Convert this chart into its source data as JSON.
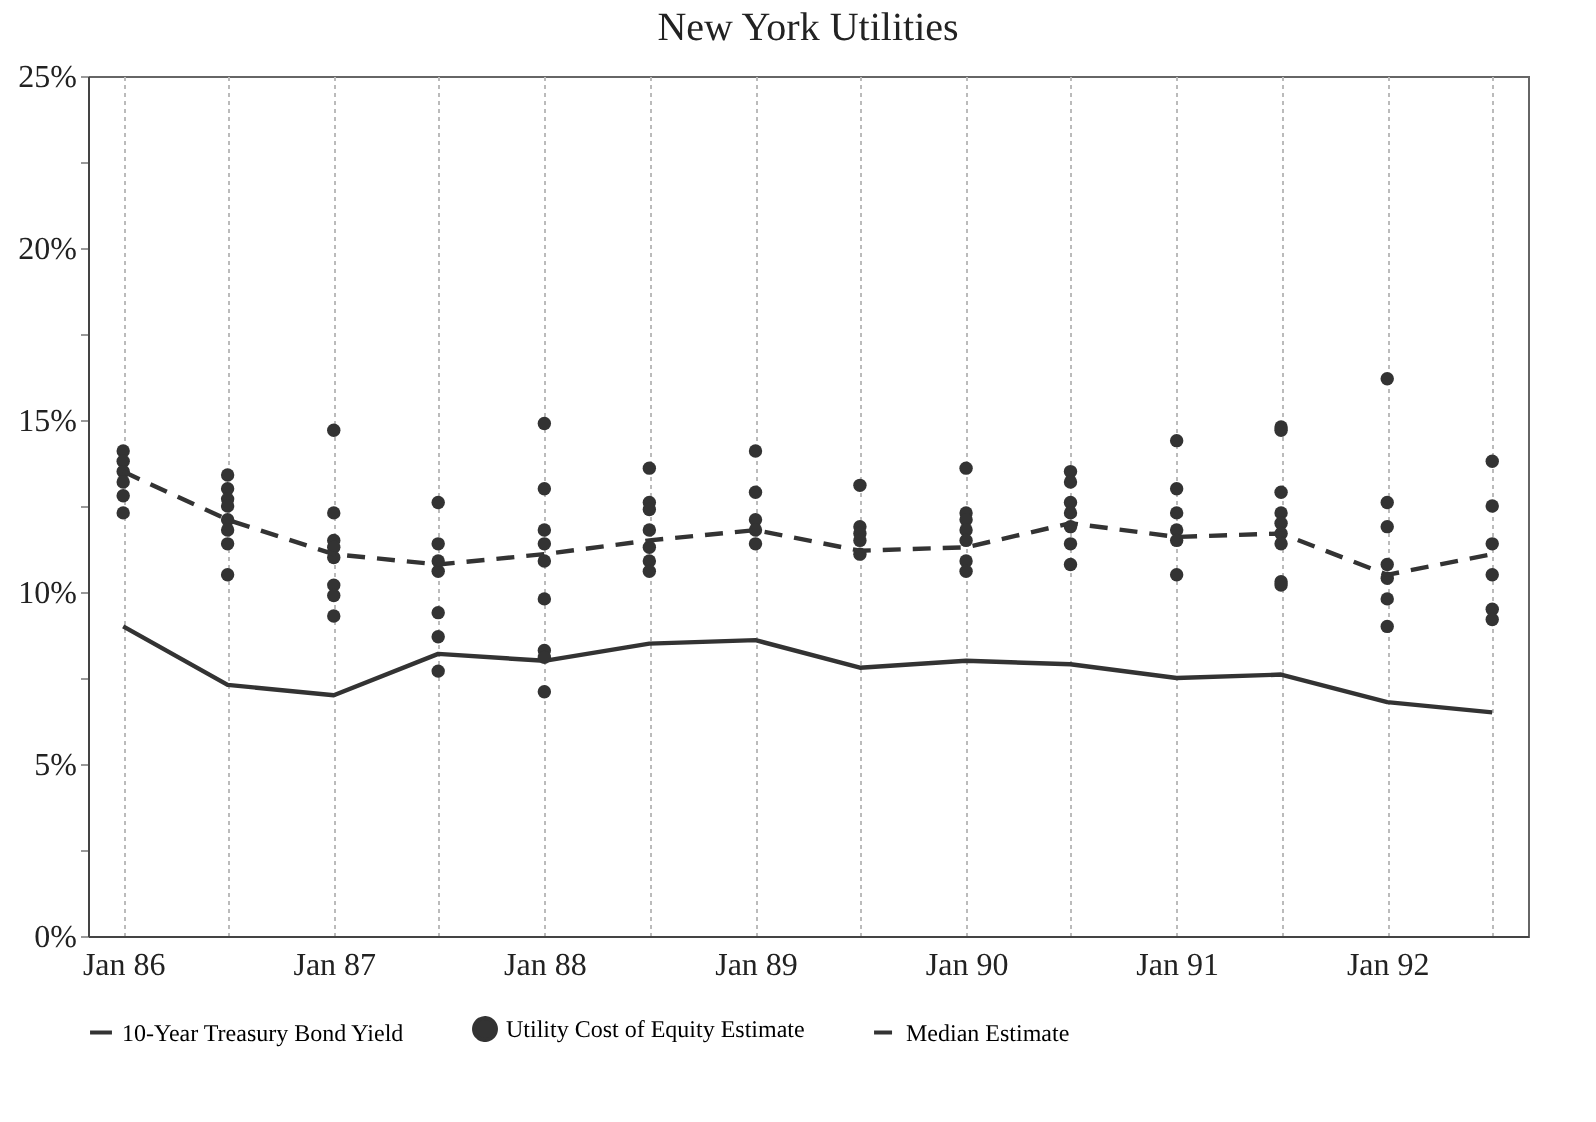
{
  "chart_data": {
    "type": "line",
    "title": "New York Utilities",
    "x": [
      "1986-01",
      "1986-07",
      "1987-01",
      "1987-07",
      "1988-01",
      "1988-07",
      "1989-01",
      "1989-07",
      "1990-01",
      "1990-07",
      "1991-01",
      "1991-07",
      "1992-01",
      "1992-07"
    ],
    "xlim": [
      "1985-11",
      "1992-09"
    ],
    "xticks": [
      {
        "value": "1986-01",
        "label": "Jan 86"
      },
      {
        "value": "1986-07",
        "label": null
      },
      {
        "value": "1987-01",
        "label": "Jan 87"
      },
      {
        "value": "1987-07",
        "label": null
      },
      {
        "value": "1988-01",
        "label": "Jan 88"
      },
      {
        "value": "1988-07",
        "label": null
      },
      {
        "value": "1989-01",
        "label": "Jan 89"
      },
      {
        "value": "1989-07",
        "label": null
      },
      {
        "value": "1990-01",
        "label": "Jan 90"
      },
      {
        "value": "1990-07",
        "label": null
      },
      {
        "value": "1991-01",
        "label": "Jan 91"
      },
      {
        "value": "1991-07",
        "label": null
      },
      {
        "value": "1992-01",
        "label": "Jan 92"
      },
      {
        "value": "1992-07",
        "label": null
      }
    ],
    "ylim": [
      0,
      25
    ],
    "yticks": [
      {
        "value": 0,
        "label": "0%"
      },
      {
        "value": 2.5,
        "label": null
      },
      {
        "value": 5,
        "label": "5%"
      },
      {
        "value": 7.5,
        "label": null
      },
      {
        "value": 10,
        "label": "10%"
      },
      {
        "value": 12.5,
        "label": null
      },
      {
        "value": 15,
        "label": "15%"
      },
      {
        "value": 17.5,
        "label": null
      },
      {
        "value": 20,
        "label": "20%"
      },
      {
        "value": 22.5,
        "label": null
      },
      {
        "value": 25,
        "label": "25%"
      }
    ],
    "grid": "x",
    "legend": "bottom",
    "series": [
      {
        "name": "10-Year Treasury Bond Yield",
        "color": "#333333",
        "line_style": "solid",
        "values": [
          9.0,
          7.3,
          7.0,
          8.2,
          8.0,
          8.5,
          8.6,
          7.8,
          8.0,
          7.9,
          7.5,
          7.6,
          6.8,
          6.5
        ]
      },
      {
        "name": "Utility Cost of Equity Estimate",
        "type": "scatter",
        "color": "#333333",
        "marker": "circle",
        "x": [
          "1986-01",
          "1986-01",
          "1986-01",
          "1986-01",
          "1986-01",
          "1986-01",
          "1986-07",
          "1986-07",
          "1986-07",
          "1986-07",
          "1986-07",
          "1986-07",
          "1986-07",
          "1986-07",
          "1987-01",
          "1987-01",
          "1987-01",
          "1987-01",
          "1987-01",
          "1987-01",
          "1987-01",
          "1987-01",
          "1987-07",
          "1987-07",
          "1987-07",
          "1987-07",
          "1987-07",
          "1987-07",
          "1987-07",
          "1988-01",
          "1988-01",
          "1988-01",
          "1988-01",
          "1988-01",
          "1988-01",
          "1988-01",
          "1988-01",
          "1988-01",
          "1988-07",
          "1988-07",
          "1988-07",
          "1988-07",
          "1988-07",
          "1988-07",
          "1988-07",
          "1989-01",
          "1989-01",
          "1989-01",
          "1989-01",
          "1989-01",
          "1989-07",
          "1989-07",
          "1989-07",
          "1989-07",
          "1989-07",
          "1990-01",
          "1990-01",
          "1990-01",
          "1990-01",
          "1990-01",
          "1990-01",
          "1990-01",
          "1990-07",
          "1990-07",
          "1990-07",
          "1990-07",
          "1990-07",
          "1990-07",
          "1990-07",
          "1991-01",
          "1991-01",
          "1991-01",
          "1991-01",
          "1991-01",
          "1991-01",
          "1991-07",
          "1991-07",
          "1991-07",
          "1991-07",
          "1991-07",
          "1991-07",
          "1991-07",
          "1991-07",
          "1991-07",
          "1992-01",
          "1992-01",
          "1992-01",
          "1992-01",
          "1992-01",
          "1992-01",
          "1992-01",
          "1992-07",
          "1992-07",
          "1992-07",
          "1992-07",
          "1992-07",
          "1992-07"
        ],
        "values": [
          14.1,
          13.8,
          13.5,
          13.2,
          12.8,
          12.3,
          13.4,
          13.0,
          12.7,
          12.5,
          12.1,
          11.8,
          11.4,
          10.5,
          14.7,
          12.3,
          11.5,
          11.3,
          11.0,
          10.2,
          9.9,
          9.3,
          12.6,
          11.4,
          10.9,
          10.6,
          9.4,
          8.7,
          7.7,
          14.9,
          13.0,
          11.8,
          11.4,
          10.9,
          9.8,
          8.3,
          8.1,
          7.1,
          13.6,
          12.6,
          12.4,
          11.8,
          11.3,
          10.9,
          10.6,
          14.1,
          12.9,
          12.1,
          11.8,
          11.4,
          13.1,
          11.9,
          11.7,
          11.5,
          11.1,
          13.6,
          12.3,
          12.1,
          11.8,
          11.5,
          10.9,
          10.6,
          13.5,
          13.2,
          12.6,
          12.3,
          11.9,
          11.4,
          10.8,
          14.4,
          13.0,
          12.3,
          11.8,
          11.5,
          10.5,
          14.8,
          14.7,
          12.9,
          12.3,
          12.0,
          11.7,
          11.4,
          10.3,
          10.2,
          16.2,
          12.6,
          11.9,
          10.8,
          10.4,
          9.8,
          9.0,
          13.8,
          12.5,
          11.4,
          10.5,
          9.5,
          9.2
        ]
      },
      {
        "name": "Median Estimate",
        "color": "#333333",
        "line_style": "dashed",
        "values": [
          13.5,
          12.1,
          11.1,
          10.8,
          11.1,
          11.5,
          11.8,
          11.2,
          11.3,
          12.0,
          11.6,
          11.7,
          10.5,
          11.1
        ]
      }
    ]
  }
}
